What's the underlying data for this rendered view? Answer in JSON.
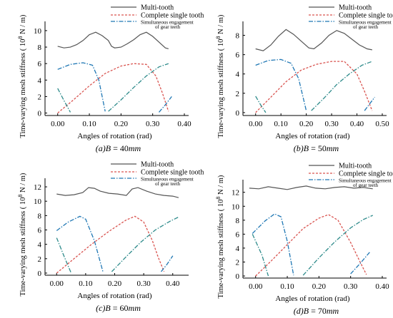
{
  "colors": {
    "multi": "#555555",
    "complete": "#d9534f",
    "simultaneous": "#1f77b4",
    "simultaneous_alt": "#2e8b8b",
    "axis": "#000000"
  },
  "chart_data": [
    {
      "type": "line",
      "caption_prefix": "(a)",
      "caption_var": "B",
      "caption_value": " = 40",
      "caption_unit": "mm",
      "xlabel": "Angles of rotation (rad)",
      "ylabel": "Time-varying mesh stiffness ( 10",
      "ylabel_exp": "8",
      "ylabel_unit": " N / m)",
      "xlim": [
        -0.04,
        0.4
      ],
      "ylim": [
        -0.3,
        10.6
      ],
      "xticks": [
        0.0,
        0.1,
        0.2,
        0.3,
        0.4
      ],
      "xtick_labels": [
        "0.00",
        "0.10",
        "0.20",
        "0.30",
        "0.40"
      ],
      "yticks": [
        0,
        2,
        4,
        6,
        8,
        10
      ],
      "ytick_labels": [
        "0",
        "2",
        "4",
        "6",
        "8",
        "10"
      ],
      "legend": [
        "Multi-tooth",
        "Complete single tooth",
        "Simultaneous engagement",
        "of gear teeth"
      ],
      "series": [
        {
          "name": "Multi-tooth",
          "style": "solid",
          "color": "multi",
          "x": [
            0.0,
            0.02,
            0.04,
            0.06,
            0.08,
            0.1,
            0.12,
            0.14,
            0.16,
            0.17,
            0.18,
            0.2,
            0.22,
            0.24,
            0.26,
            0.28,
            0.3,
            0.32,
            0.34,
            0.35
          ],
          "y": [
            8.1,
            7.9,
            8.0,
            8.3,
            8.8,
            9.5,
            9.8,
            9.4,
            8.8,
            8.1,
            7.9,
            8.0,
            8.4,
            8.9,
            9.5,
            9.8,
            9.3,
            8.6,
            7.9,
            7.8
          ]
        },
        {
          "name": "Complete single tooth",
          "style": "dashed",
          "color": "complete",
          "x": [
            0.0,
            0.05,
            0.1,
            0.15,
            0.2,
            0.24,
            0.28,
            0.31,
            0.33,
            0.35
          ],
          "y": [
            0.0,
            1.6,
            3.3,
            4.8,
            5.7,
            6.0,
            5.9,
            4.5,
            2.5,
            0.2
          ]
        },
        {
          "name": "Simultaneous engagement of gear teeth",
          "style": "dashdot",
          "color": "simultaneous",
          "x": [
            0.0,
            0.04,
            0.08,
            0.11,
            0.13,
            0.15
          ],
          "y": [
            5.3,
            5.9,
            6.1,
            5.8,
            4.0,
            0.2
          ]
        },
        {
          "name": "",
          "style": "dashdot",
          "color": "simultaneous_alt",
          "x": [
            0.16,
            0.2,
            0.24,
            0.28,
            0.32,
            0.35
          ],
          "y": [
            0.2,
            1.6,
            3.1,
            4.5,
            5.6,
            6.0
          ]
        },
        {
          "name": "",
          "style": "dashdot",
          "color": "simultaneous_alt",
          "x": [
            0.0,
            0.02,
            0.04
          ],
          "y": [
            3.0,
            1.5,
            0.1
          ]
        },
        {
          "name": "",
          "style": "dashdot",
          "color": "simultaneous",
          "x": [
            0.32,
            0.34,
            0.36
          ],
          "y": [
            0.1,
            1.0,
            2.0
          ]
        }
      ]
    },
    {
      "type": "line",
      "caption_prefix": "(b)",
      "caption_var": "B",
      "caption_value": " = 50",
      "caption_unit": "mm",
      "xlabel": "Angles of rotation (rad)",
      "ylabel": "Time-varying mesh stiffness ( 10",
      "ylabel_exp": "8",
      "ylabel_unit": " N / m)",
      "xlim": [
        -0.05,
        0.5
      ],
      "ylim": [
        -0.3,
        9.0
      ],
      "xticks": [
        0.0,
        0.1,
        0.2,
        0.3,
        0.4,
        0.5
      ],
      "xtick_labels": [
        "0.00",
        "0.10",
        "0.20",
        "0.30",
        "0.40",
        "0.50"
      ],
      "yticks": [
        0,
        2,
        4,
        6,
        8
      ],
      "ytick_labels": [
        "0",
        "2",
        "4",
        "6",
        "8"
      ],
      "legend": [
        "Multi-tooth",
        "Complete single tooth",
        "Simultaneous engagement",
        "of gear teeth"
      ],
      "series": [
        {
          "name": "Multi-tooth",
          "style": "solid",
          "color": "multi",
          "x": [
            0.0,
            0.03,
            0.06,
            0.09,
            0.12,
            0.15,
            0.18,
            0.21,
            0.23,
            0.26,
            0.29,
            0.32,
            0.35,
            0.38,
            0.41,
            0.44,
            0.46
          ],
          "y": [
            6.6,
            6.4,
            7.0,
            7.9,
            8.6,
            8.1,
            7.4,
            6.7,
            6.6,
            7.2,
            8.0,
            8.5,
            8.2,
            7.6,
            7.0,
            6.6,
            6.5
          ]
        },
        {
          "name": "Complete single tooth",
          "style": "dashed",
          "color": "complete",
          "x": [
            0.0,
            0.06,
            0.12,
            0.18,
            0.24,
            0.3,
            0.35,
            0.4,
            0.43,
            0.46
          ],
          "y": [
            0.0,
            1.6,
            3.2,
            4.4,
            5.0,
            5.3,
            5.3,
            4.0,
            2.2,
            0.2
          ]
        },
        {
          "name": "Simultaneous engagement of gear teeth",
          "style": "dashdot",
          "color": "simultaneous",
          "x": [
            0.0,
            0.05,
            0.1,
            0.14,
            0.17,
            0.2
          ],
          "y": [
            4.9,
            5.4,
            5.5,
            5.1,
            3.5,
            0.2
          ]
        },
        {
          "name": "",
          "style": "dashdot",
          "color": "simultaneous_alt",
          "x": [
            0.22,
            0.27,
            0.32,
            0.37,
            0.42,
            0.46
          ],
          "y": [
            0.2,
            1.5,
            2.9,
            4.0,
            4.9,
            5.3
          ]
        },
        {
          "name": "",
          "style": "dashdot",
          "color": "simultaneous_alt",
          "x": [
            0.0,
            0.02,
            0.04
          ],
          "y": [
            1.7,
            0.8,
            0.0
          ]
        },
        {
          "name": "",
          "style": "dashdot",
          "color": "simultaneous",
          "x": [
            0.43,
            0.45,
            0.47
          ],
          "y": [
            0.2,
            0.9,
            1.6
          ]
        }
      ]
    },
    {
      "type": "line",
      "caption_prefix": "(c)",
      "caption_var": "B",
      "caption_value": " = 60",
      "caption_unit": "mm",
      "xlabel": "Angles of rotation (rad)",
      "ylabel": "Time-varying mesh stiffness ( 10",
      "ylabel_exp": "8",
      "ylabel_unit": " N / m)",
      "xlim": [
        -0.04,
        0.44
      ],
      "ylim": [
        -0.3,
        12.6
      ],
      "xticks": [
        0.0,
        0.1,
        0.2,
        0.3,
        0.4
      ],
      "xtick_labels": [
        "0.00",
        "0.10",
        "0.20",
        "0.30",
        "0.40"
      ],
      "yticks": [
        0,
        2,
        4,
        6,
        8,
        10,
        12
      ],
      "ytick_labels": [
        "0",
        "2",
        "4",
        "6",
        "8",
        "10",
        "12"
      ],
      "legend": [
        "Multi-tooth",
        "Complete single tooth",
        "Simultaneous engagement",
        "of gear teeth"
      ],
      "series": [
        {
          "name": "Multi-tooth",
          "style": "solid",
          "color": "multi",
          "x": [
            0.0,
            0.03,
            0.06,
            0.09,
            0.11,
            0.13,
            0.15,
            0.18,
            0.21,
            0.24,
            0.26,
            0.28,
            0.31,
            0.34,
            0.37,
            0.4,
            0.42
          ],
          "y": [
            11.0,
            10.8,
            10.9,
            11.2,
            11.9,
            11.8,
            11.4,
            11.1,
            11.0,
            10.8,
            11.7,
            11.9,
            11.4,
            11.0,
            10.8,
            10.7,
            10.5
          ]
        },
        {
          "name": "Complete single tooth",
          "style": "dashed",
          "color": "complete",
          "x": [
            0.0,
            0.06,
            0.12,
            0.18,
            0.24,
            0.27,
            0.3,
            0.33,
            0.35,
            0.37
          ],
          "y": [
            0.0,
            2.0,
            4.0,
            5.8,
            7.4,
            7.9,
            7.1,
            4.5,
            2.2,
            0.2
          ]
        },
        {
          "name": "Simultaneous engagement of gear teeth",
          "style": "dashdot",
          "color": "simultaneous",
          "x": [
            0.0,
            0.04,
            0.08,
            0.1,
            0.13,
            0.16
          ],
          "y": [
            5.9,
            7.1,
            7.9,
            7.5,
            4.5,
            0.1
          ]
        },
        {
          "name": "",
          "style": "dashdot",
          "color": "simultaneous_alt",
          "x": [
            0.19,
            0.24,
            0.29,
            0.34,
            0.39,
            0.42
          ],
          "y": [
            0.2,
            2.3,
            4.3,
            6.0,
            7.2,
            7.8
          ]
        },
        {
          "name": "",
          "style": "dashdot",
          "color": "simultaneous_alt",
          "x": [
            0.0,
            0.025,
            0.05
          ],
          "y": [
            4.9,
            2.4,
            0.0
          ]
        },
        {
          "name": "",
          "style": "dashdot",
          "color": "simultaneous",
          "x": [
            0.36,
            0.38,
            0.4
          ],
          "y": [
            0.2,
            1.2,
            2.4
          ]
        }
      ]
    },
    {
      "type": "line",
      "caption_prefix": "(d)",
      "caption_var": "B",
      "caption_value": " = 70",
      "caption_unit": "mm",
      "xlabel": "Angles of rotation (rad)",
      "ylabel": "Time-varying mesh stiffness ( 10",
      "ylabel_exp": "8",
      "ylabel_unit": " N / m)",
      "xlim": [
        -0.04,
        0.4
      ],
      "ylim": [
        -0.3,
        13.2
      ],
      "xticks": [
        0.0,
        0.1,
        0.2,
        0.3,
        0.4
      ],
      "xtick_labels": [
        "0.00",
        "0.10",
        "0.20",
        "0.30",
        "0.40"
      ],
      "yticks": [
        0,
        2,
        4,
        6,
        8,
        10,
        12
      ],
      "ytick_labels": [
        "0",
        "2",
        "4",
        "6",
        "8",
        "10",
        "12"
      ],
      "legend": [
        "Multi-tooth",
        "Complete single tooth",
        "Simultaneous engagement",
        "of gear teeth"
      ],
      "series": [
        {
          "name": "Multi-tooth",
          "style": "solid",
          "color": "multi",
          "x": [
            -0.02,
            0.01,
            0.04,
            0.07,
            0.1,
            0.13,
            0.16,
            0.19,
            0.22,
            0.25,
            0.28,
            0.31,
            0.34,
            0.37
          ],
          "y": [
            12.6,
            12.5,
            12.8,
            12.6,
            12.4,
            12.7,
            12.9,
            12.6,
            12.5,
            12.7,
            12.8,
            12.6,
            12.7,
            12.5
          ]
        },
        {
          "name": "Complete single tooth",
          "style": "dashed",
          "color": "complete",
          "x": [
            0.0,
            0.05,
            0.1,
            0.15,
            0.2,
            0.23,
            0.26,
            0.3,
            0.33,
            0.35
          ],
          "y": [
            0.0,
            2.2,
            4.5,
            6.8,
            8.3,
            8.8,
            8.0,
            4.8,
            2.0,
            0.2
          ]
        },
        {
          "name": "Simultaneous engagement of gear teeth",
          "style": "dashdot",
          "color": "simultaneous",
          "x": [
            -0.01,
            0.03,
            0.06,
            0.08,
            0.1,
            0.12
          ],
          "y": [
            6.1,
            7.9,
            8.9,
            8.5,
            5.0,
            0.1
          ]
        },
        {
          "name": "",
          "style": "dashdot",
          "color": "simultaneous_alt",
          "x": [
            0.15,
            0.2,
            0.25,
            0.3,
            0.34,
            0.37
          ],
          "y": [
            0.1,
            2.6,
            4.9,
            6.9,
            8.1,
            8.7
          ]
        },
        {
          "name": "",
          "style": "dashdot",
          "color": "simultaneous_alt",
          "x": [
            -0.01,
            0.02,
            0.04
          ],
          "y": [
            6.0,
            3.0,
            0.0
          ]
        },
        {
          "name": "",
          "style": "dashdot",
          "color": "simultaneous",
          "x": [
            0.3,
            0.33,
            0.36
          ],
          "y": [
            0.3,
            1.8,
            3.4
          ]
        }
      ]
    }
  ]
}
